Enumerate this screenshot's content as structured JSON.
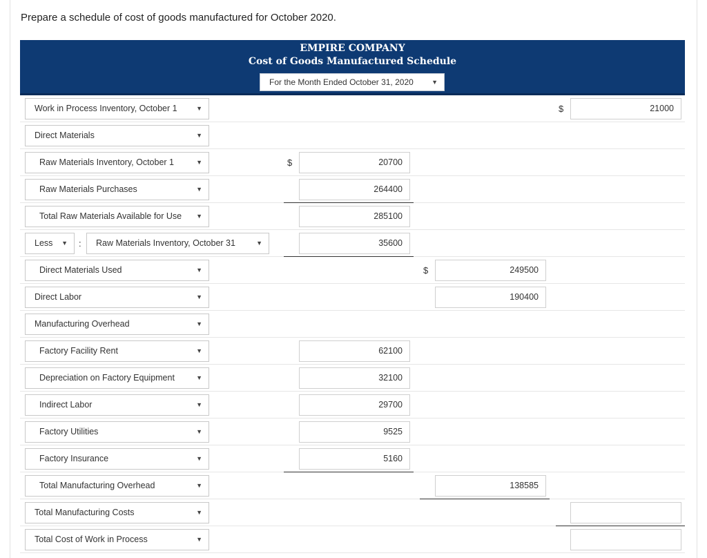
{
  "instruction": "Prepare a schedule of cost of goods manufactured for October 2020.",
  "header": {
    "company": "EMPIRE COMPANY",
    "title": "Cost of Goods Manufactured Schedule",
    "period": "For the Month Ended October 31, 2020"
  },
  "currency_symbol": "$",
  "rows": {
    "wip_beginning": {
      "label": "Work in Process Inventory, October 1",
      "value": "21000"
    },
    "direct_materials": {
      "label": "Direct Materials"
    },
    "raw_beginning": {
      "label": "Raw Materials Inventory, October 1",
      "value": "20700"
    },
    "raw_purchases": {
      "label": "Raw Materials Purchases",
      "value": "264400"
    },
    "raw_available": {
      "label": "Total Raw Materials Available for Use",
      "value": "285100"
    },
    "raw_ending": {
      "operator": "Less",
      "separator": ":",
      "label": "Raw Materials Inventory, October 31",
      "value": "35600"
    },
    "dm_used": {
      "label": "Direct Materials Used",
      "value": "249500"
    },
    "direct_labor": {
      "label": "Direct Labor",
      "value": "190400"
    },
    "mfg_overhead": {
      "label": "Manufacturing Overhead"
    },
    "factory_rent": {
      "label": "Factory Facility Rent",
      "value": "62100"
    },
    "depreciation": {
      "label": "Depreciation on Factory Equipment",
      "value": "32100"
    },
    "indirect_labor": {
      "label": "Indirect Labor",
      "value": "29700"
    },
    "utilities": {
      "label": "Factory Utilities",
      "value": "9525"
    },
    "insurance": {
      "label": "Factory Insurance",
      "value": "5160"
    },
    "total_overhead": {
      "label": "Total Manufacturing Overhead",
      "value": "138585"
    },
    "total_mfg_costs": {
      "label": "Total Manufacturing Costs",
      "value": ""
    },
    "total_wip": {
      "label": "Total Cost of Work in Process",
      "value": ""
    }
  },
  "colors": {
    "header_bg": "#0e3a73",
    "header_text": "#ffffff"
  }
}
